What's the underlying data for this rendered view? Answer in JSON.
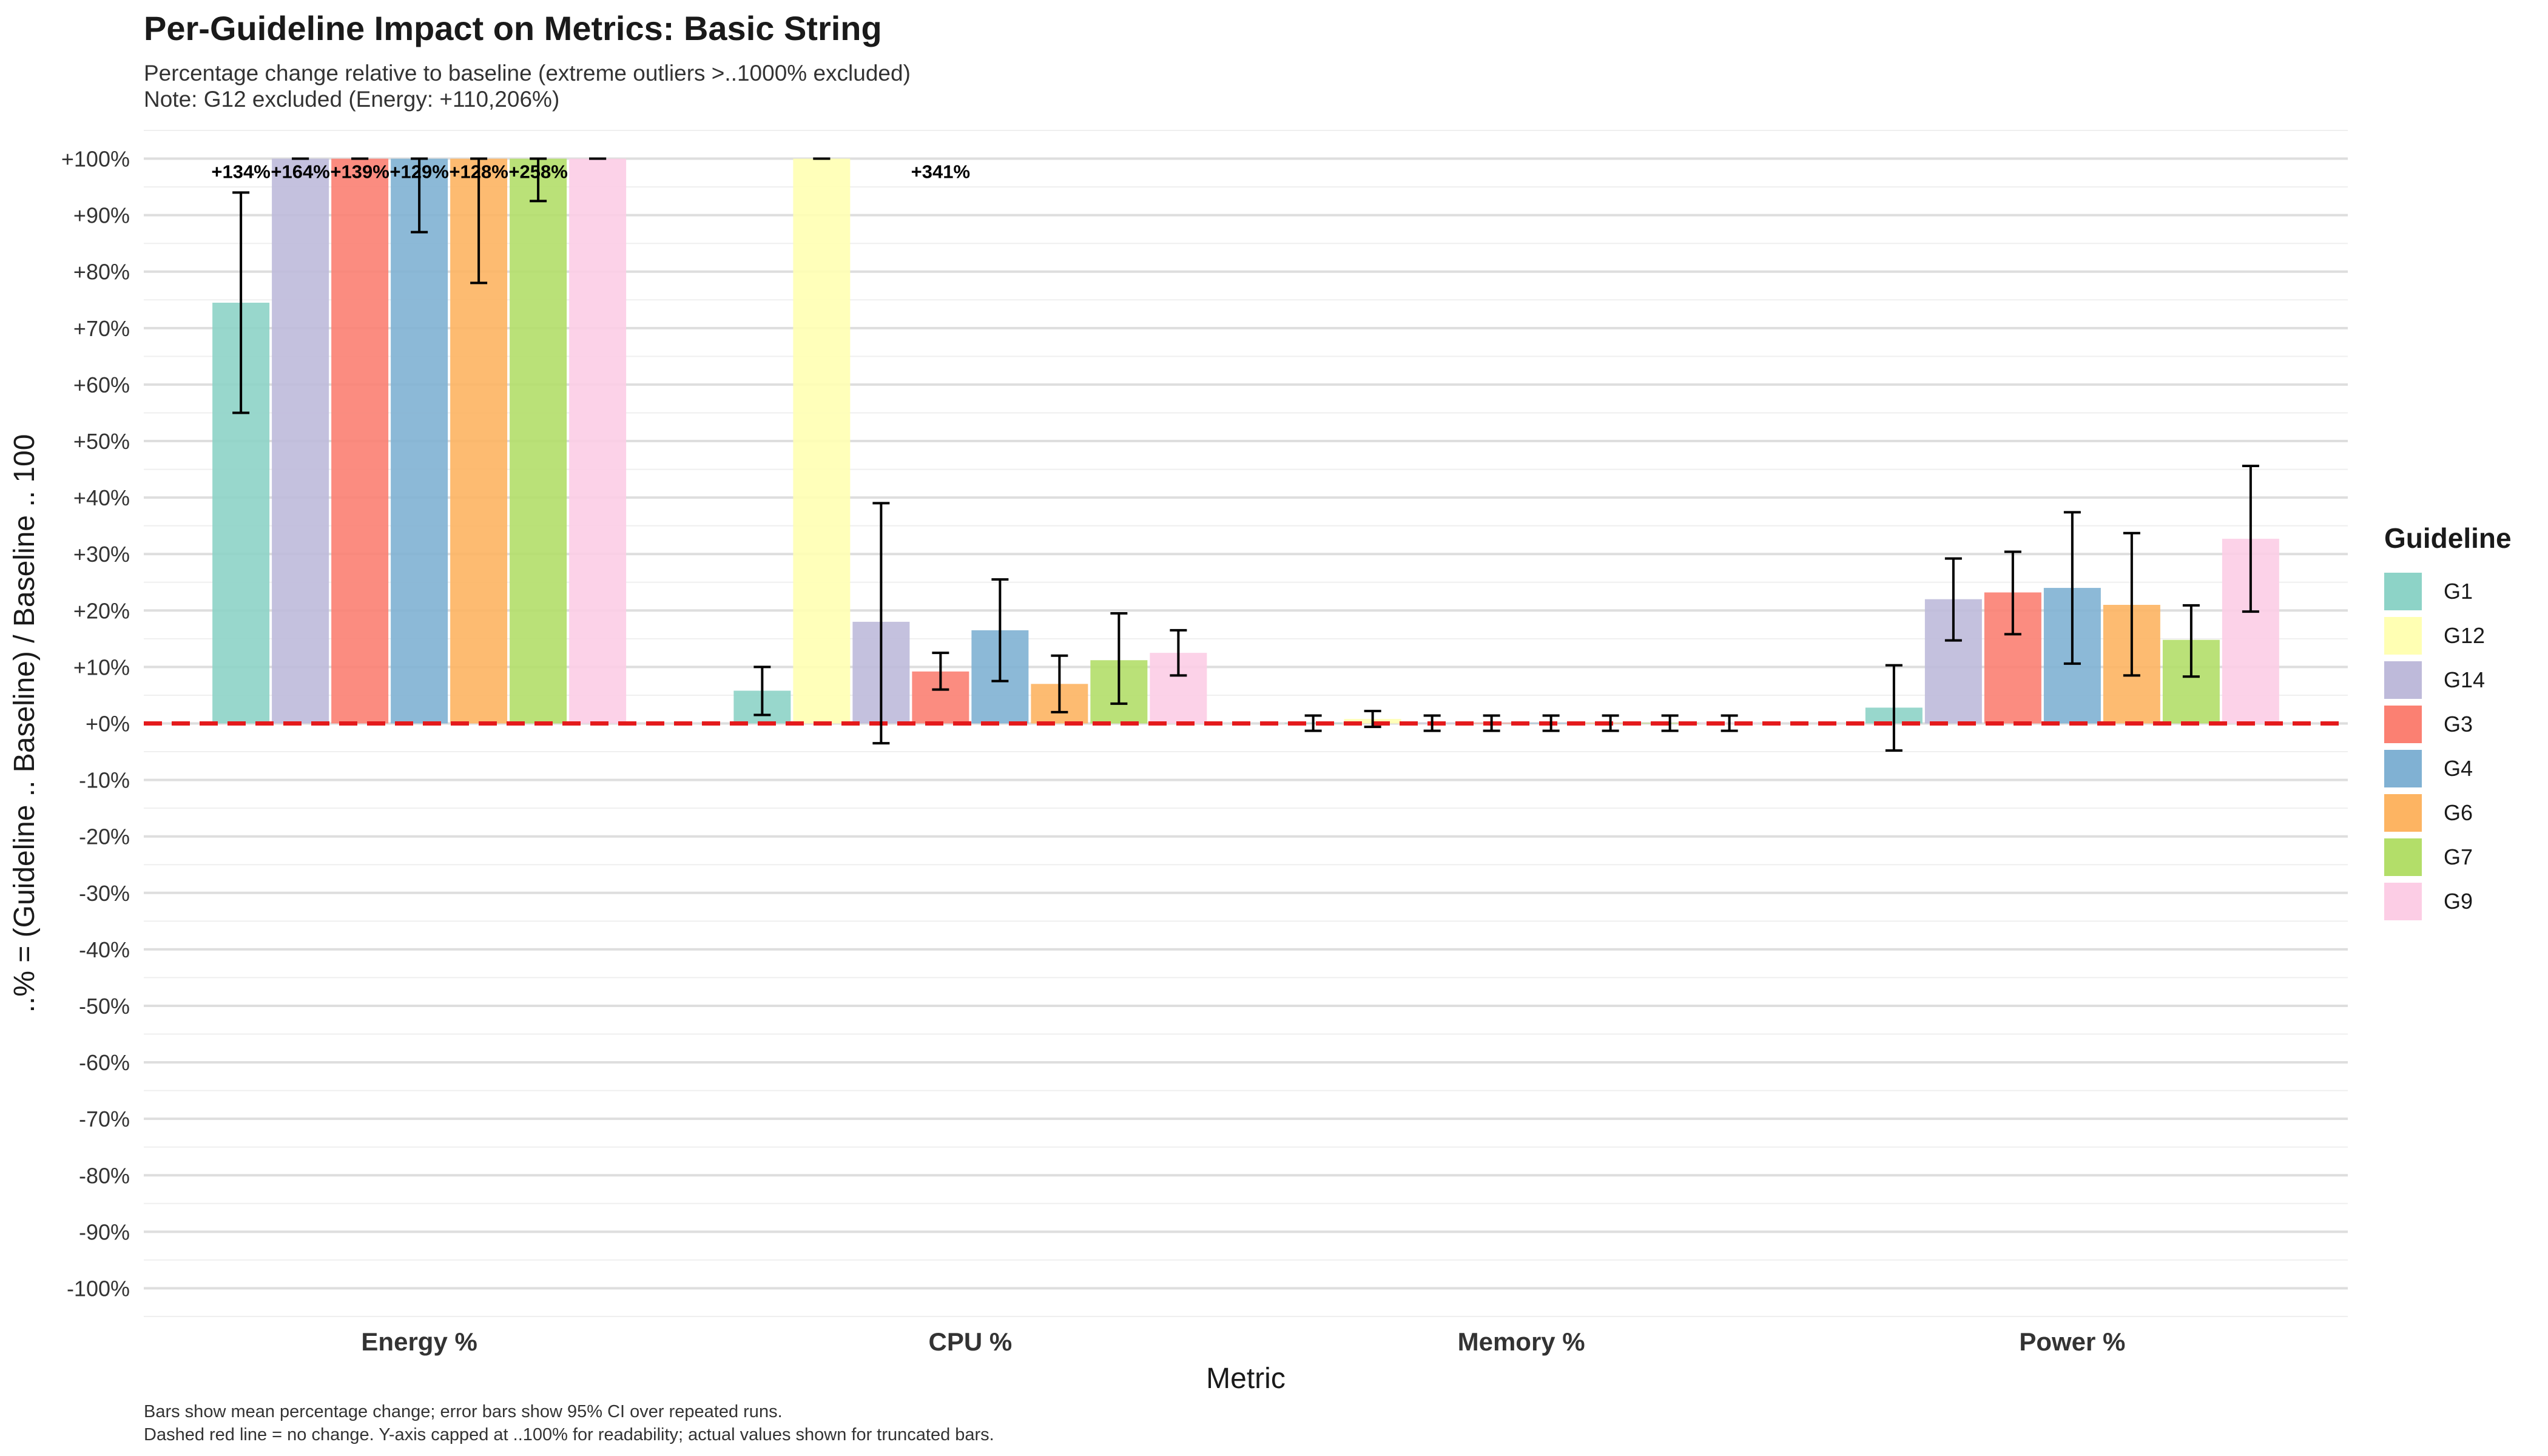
{
  "chart_data": {
    "type": "bar",
    "title": "Per-Guideline Impact on Metrics: Basic String",
    "subtitle_lines": [
      "Percentage change relative to baseline (extreme outliers >..1000% excluded)",
      "Note: G12 excluded (Energy: +110,206%)"
    ],
    "caption_lines": [
      "Bars show mean percentage change; error bars show 95% CI over repeated runs.",
      "Dashed red line = no change. Y-axis capped at ..100% for readability; actual values shown for truncated bars."
    ],
    "xlabel": "Metric",
    "ylabel": "..% = (Guideline .. Baseline) / Baseline .. 100",
    "ylim": [
      -105,
      105
    ],
    "y_ticks": [
      100,
      90,
      80,
      70,
      60,
      50,
      40,
      30,
      20,
      10,
      0,
      -10,
      -20,
      -30,
      -40,
      -50,
      -60,
      -70,
      -80,
      -90,
      -100
    ],
    "y_tick_labels": [
      "+100%",
      "+90%",
      "+80%",
      "+70%",
      "+60%",
      "+50%",
      "+40%",
      "+30%",
      "+20%",
      "+10%",
      "+0%",
      "-10%",
      "-20%",
      "-30%",
      "-40%",
      "-50%",
      "-60%",
      "-70%",
      "-80%",
      "-90%",
      "-100%"
    ],
    "categories": [
      "Energy %",
      "CPU %",
      "Memory %",
      "Power %"
    ],
    "legend_title": "Guideline",
    "legend_position": "right",
    "reference_line": {
      "y": 0,
      "style": "dashed",
      "color": "#e41a1c"
    },
    "guidelines": [
      "G1",
      "G12",
      "G14",
      "G3",
      "G4",
      "G6",
      "G7",
      "G9"
    ],
    "colors": {
      "G1": "#8dd3c7",
      "G12": "#ffffb3",
      "G14": "#bebada",
      "G3": "#fb8072",
      "G4": "#80b1d3",
      "G6": "#fdb462",
      "G7": "#b3de69",
      "G9": "#fccde5"
    },
    "groups": [
      {
        "category": "Energy %",
        "bars": [
          {
            "guideline": "G1",
            "value": 74.5,
            "ci": [
              55,
              94
            ]
          },
          {
            "guideline": "G14",
            "value": 100,
            "ci": [
              100,
              100
            ],
            "truncated_label": "+164%"
          },
          {
            "guideline": "G3",
            "value": 100,
            "ci": [
              100,
              100
            ],
            "truncated_label": "+139%"
          },
          {
            "guideline": "G4",
            "value": 100,
            "ci": [
              87,
              100
            ],
            "truncated_label": "+129%"
          },
          {
            "guideline": "G6",
            "value": 100,
            "ci": [
              78,
              100
            ],
            "truncated_label": "+128%"
          },
          {
            "guideline": "G7",
            "value": 100,
            "ci": [
              92.5,
              100
            ],
            "truncated_label": "+258%"
          },
          {
            "guideline": "G9",
            "value": 100,
            "ci": [
              100,
              100
            ]
          }
        ],
        "extra_labels": [
          {
            "text": "+134%",
            "slot": 0
          }
        ]
      },
      {
        "category": "CPU %",
        "bars": [
          {
            "guideline": "G1",
            "value": 5.8,
            "ci": [
              1.5,
              10
            ]
          },
          {
            "guideline": "G12",
            "value": 100,
            "ci": [
              100,
              100
            ]
          },
          {
            "guideline": "G14",
            "value": 18,
            "ci": [
              -3.5,
              39
            ]
          },
          {
            "guideline": "G3",
            "value": 9.2,
            "ci": [
              6,
              12.5
            ]
          },
          {
            "guideline": "G4",
            "value": 16.5,
            "ci": [
              7.5,
              25.5
            ]
          },
          {
            "guideline": "G6",
            "value": 7,
            "ci": [
              2,
              12
            ]
          },
          {
            "guideline": "G7",
            "value": 11.2,
            "ci": [
              3.5,
              19.5
            ]
          },
          {
            "guideline": "G9",
            "value": 12.5,
            "ci": [
              8.5,
              16.5
            ]
          }
        ],
        "extra_labels": [
          {
            "text": "+341%",
            "slot": 3
          }
        ]
      },
      {
        "category": "Memory %",
        "bars": [
          {
            "guideline": "G1",
            "value": 0.1,
            "ci": [
              -1.3,
              1.4
            ]
          },
          {
            "guideline": "G12",
            "value": 0.8,
            "ci": [
              -0.6,
              2.2
            ]
          },
          {
            "guideline": "G14",
            "value": 0.1,
            "ci": [
              -1.3,
              1.4
            ]
          },
          {
            "guideline": "G3",
            "value": 0.1,
            "ci": [
              -1.3,
              1.4
            ]
          },
          {
            "guideline": "G4",
            "value": 0.1,
            "ci": [
              -1.3,
              1.4
            ]
          },
          {
            "guideline": "G6",
            "value": 0.1,
            "ci": [
              -1.3,
              1.4
            ]
          },
          {
            "guideline": "G7",
            "value": 0.1,
            "ci": [
              -1.3,
              1.4
            ]
          },
          {
            "guideline": "G9",
            "value": 0.1,
            "ci": [
              -1.3,
              1.4
            ]
          }
        ],
        "extra_labels": []
      },
      {
        "category": "Power %",
        "bars": [
          {
            "guideline": "G1",
            "value": 2.8,
            "ci": [
              -4.8,
              10.3
            ]
          },
          {
            "guideline": "G14",
            "value": 22,
            "ci": [
              14.7,
              29.2
            ]
          },
          {
            "guideline": "G3",
            "value": 23.2,
            "ci": [
              15.8,
              30.4
            ]
          },
          {
            "guideline": "G4",
            "value": 24,
            "ci": [
              10.6,
              37.4
            ]
          },
          {
            "guideline": "G6",
            "value": 21,
            "ci": [
              8.5,
              33.7
            ]
          },
          {
            "guideline": "G7",
            "value": 14.8,
            "ci": [
              8.3,
              20.9
            ]
          },
          {
            "guideline": "G9",
            "value": 32.7,
            "ci": [
              19.8,
              45.6
            ]
          }
        ],
        "extra_labels": []
      }
    ]
  }
}
